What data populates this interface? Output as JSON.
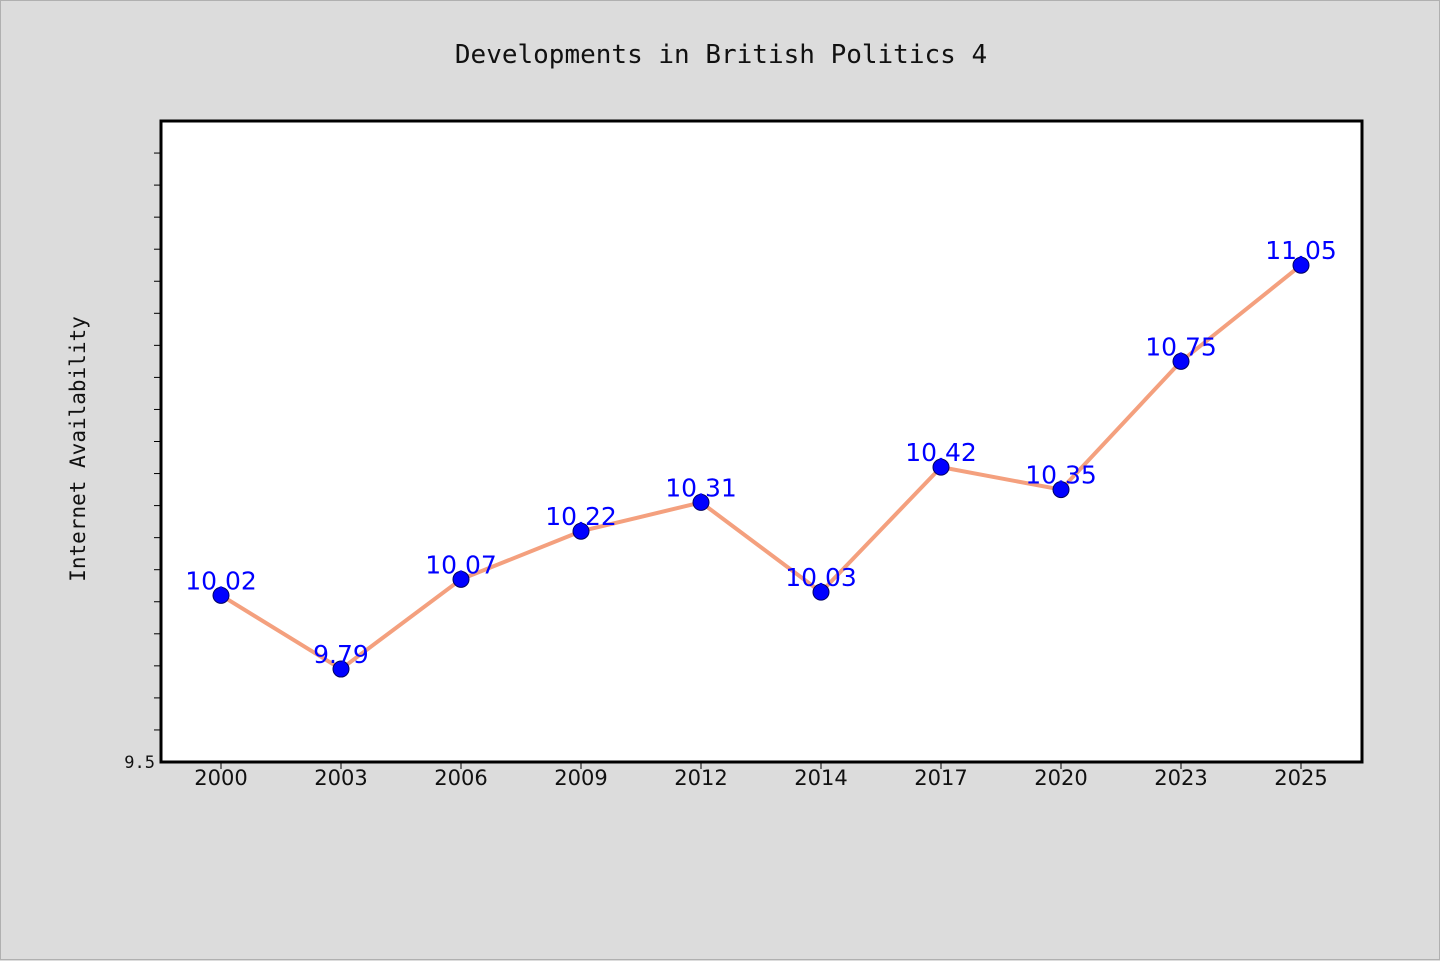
{
  "chart_data": {
    "type": "line",
    "title": "Developments in British Politics 4",
    "xlabel": "",
    "ylabel": "Internet Availability",
    "categories": [
      "2000",
      "2003",
      "2006",
      "2009",
      "2012",
      "2014",
      "2017",
      "2020",
      "2023",
      "2025"
    ],
    "series": [
      {
        "values": [
          10.02,
          9.79,
          10.07,
          10.22,
          10.31,
          10.03,
          10.42,
          10.35,
          10.75,
          11.05
        ]
      }
    ],
    "data_labels": [
      "10.02",
      "9.79",
      "10.07",
      "10.22",
      "10.31",
      "10.03",
      "10.42",
      "10.35",
      "10.75",
      "11.05"
    ],
    "ylim": [
      9.5,
      11.5
    ],
    "y_minor_step": 0.1,
    "y_tick_labels": [
      "9.5"
    ],
    "grid": false,
    "legend": "none",
    "colors": {
      "line": "#f4a07e",
      "marker": "#0000ff",
      "label": "#0000ff",
      "background": "#dcdcdc",
      "plot_background": "#ffffff",
      "axis": "#000000"
    }
  }
}
